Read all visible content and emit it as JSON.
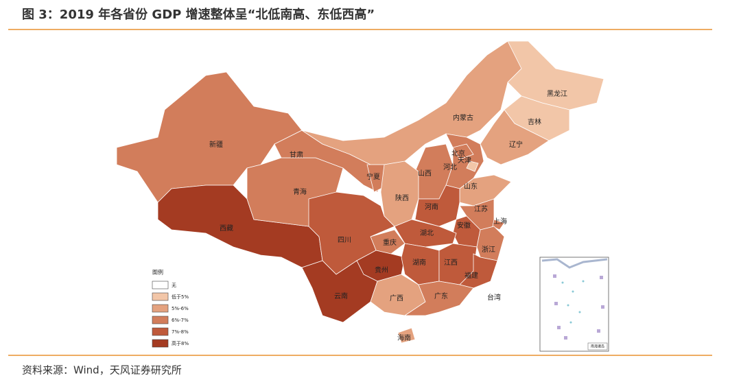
{
  "header": {
    "title": "图 3：2019 年各省份 GDP 增速整体呈“北低南高、东低西高”"
  },
  "legend": {
    "title": "图例",
    "items": [
      {
        "label": "无",
        "color": "#ffffff"
      },
      {
        "label": "低于5%",
        "color": "#f2c6a8"
      },
      {
        "label": "5%-6%",
        "color": "#e4a27f"
      },
      {
        "label": "6%-7%",
        "color": "#d27d5b"
      },
      {
        "label": "7%-8%",
        "color": "#bf5a3b"
      },
      {
        "label": "高于8%",
        "color": "#a43b22"
      }
    ]
  },
  "provinces": [
    {
      "name": "新疆",
      "color": "#d27d5b"
    },
    {
      "name": "西藏",
      "color": "#a43b22"
    },
    {
      "name": "青海",
      "color": "#d27d5b"
    },
    {
      "name": "甘肃",
      "color": "#d27d5b"
    },
    {
      "name": "内蒙古",
      "color": "#e4a27f"
    },
    {
      "name": "黑龙江",
      "color": "#f2c6a8"
    },
    {
      "name": "吉林",
      "color": "#f2c6a8"
    },
    {
      "name": "辽宁",
      "color": "#e4a27f"
    },
    {
      "name": "河北",
      "color": "#d27d5b"
    },
    {
      "name": "北京",
      "color": "#d27d5b"
    },
    {
      "name": "天津",
      "color": "#f2c6a8"
    },
    {
      "name": "山西",
      "color": "#d27d5b"
    },
    {
      "name": "山东",
      "color": "#e4a27f"
    },
    {
      "name": "宁夏",
      "color": "#d27d5b"
    },
    {
      "name": "陕西",
      "color": "#e4a27f"
    },
    {
      "name": "河南",
      "color": "#bf5a3b"
    },
    {
      "name": "江苏",
      "color": "#d27d5b"
    },
    {
      "name": "安徽",
      "color": "#bf5a3b"
    },
    {
      "name": "上海",
      "color": "#d27d5b"
    },
    {
      "name": "浙江",
      "color": "#d27d5b"
    },
    {
      "name": "湖北",
      "color": "#bf5a3b"
    },
    {
      "name": "重庆",
      "color": "#d27d5b"
    },
    {
      "name": "四川",
      "color": "#bf5a3b"
    },
    {
      "name": "贵州",
      "color": "#a43b22"
    },
    {
      "name": "湖南",
      "color": "#bf5a3b"
    },
    {
      "name": "江西",
      "color": "#bf5a3b"
    },
    {
      "name": "福建",
      "color": "#bf5a3b"
    },
    {
      "name": "云南",
      "color": "#a43b22"
    },
    {
      "name": "广西",
      "color": "#e4a27f"
    },
    {
      "name": "广东",
      "color": "#d27d5b"
    },
    {
      "name": "海南",
      "color": "#e4a27f"
    },
    {
      "name": "台湾",
      "color": "#ffffff"
    }
  ],
  "inset": {
    "label": "南海诸岛"
  },
  "footer": {
    "source": "资料来源：Wind，天风证券研究所"
  }
}
